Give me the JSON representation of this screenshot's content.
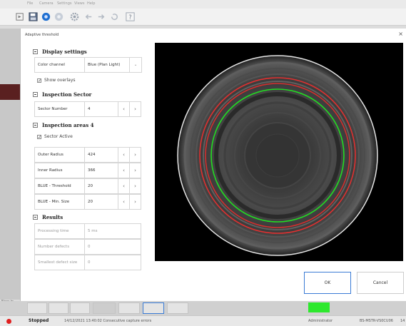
{
  "app": {
    "menu": [
      "File",
      "Camera",
      "Settings",
      "Views",
      "Help"
    ],
    "toolbar_icons": [
      "run-step-icon",
      "save-icon",
      "record-icon",
      "stop-icon",
      "settings-icon",
      "back-icon",
      "forward-icon",
      "help-icon"
    ],
    "left_strip_label": "New in"
  },
  "dialog": {
    "title": "Adaptive threshold",
    "close": "×",
    "display_settings": {
      "header": "Display settings",
      "color_channel_label": "Color channel",
      "color_channel_value": "Blue (Plan Light)",
      "show_overlays": "Show overlays",
      "show_overlays_checked": true
    },
    "inspection_sector": {
      "header": "Inspection Sector",
      "sector_number_label": "Sector Number",
      "sector_number_value": "4"
    },
    "inspection_areas": {
      "header": "Inspection areas 4",
      "sector_active": "Sector Active",
      "sector_active_checked": true,
      "outer_radius_label": "Outer Radius",
      "outer_radius_value": "424",
      "inner_radius_label": "Inner Radius",
      "inner_radius_value": "366",
      "threshold_label": "BLUE - Threshold",
      "threshold_value": "20",
      "min_size_label": "BLUE - Min. Size",
      "min_size_value": "20"
    },
    "results": {
      "header": "Results",
      "processing_time_label": "Processing time",
      "processing_time_value": "5 ms",
      "number_defects_label": "Number defects",
      "number_defects_value": "0",
      "smallest_defect_label": "Smallest defect size",
      "smallest_defect_value": "0"
    },
    "ok_label": "OK",
    "cancel_label": "Cancel"
  },
  "statusbar": {
    "state": "Stopped",
    "message": "14/12/2021 13:40:02 Consecutive capture errors",
    "user": "Administrator",
    "device": "BS-MSTR-VS0CU06",
    "extra": "14"
  },
  "colors": {
    "overlay_outer": "#e03030",
    "overlay_inner": "#22dd22",
    "status_indicator": "#2de82d"
  }
}
